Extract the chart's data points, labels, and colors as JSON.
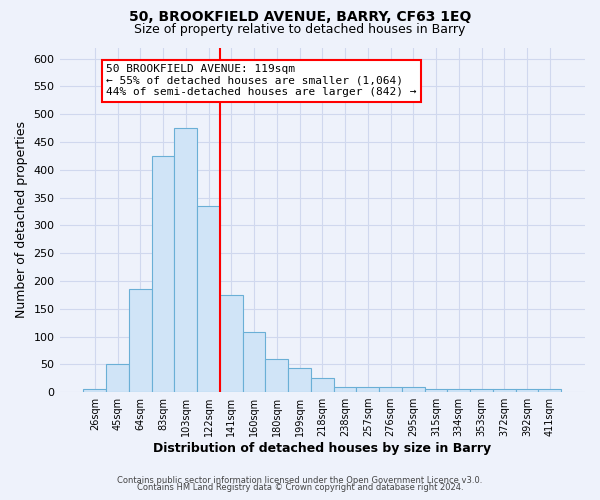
{
  "title1": "50, BROOKFIELD AVENUE, BARRY, CF63 1EQ",
  "title2": "Size of property relative to detached houses in Barry",
  "xlabel": "Distribution of detached houses by size in Barry",
  "ylabel": "Number of detached properties",
  "bin_labels": [
    "26sqm",
    "45sqm",
    "64sqm",
    "83sqm",
    "103sqm",
    "122sqm",
    "141sqm",
    "160sqm",
    "180sqm",
    "199sqm",
    "218sqm",
    "238sqm",
    "257sqm",
    "276sqm",
    "295sqm",
    "315sqm",
    "334sqm",
    "353sqm",
    "372sqm",
    "392sqm",
    "411sqm"
  ],
  "bar_heights": [
    5,
    50,
    185,
    425,
    475,
    335,
    175,
    108,
    60,
    44,
    25,
    10,
    10,
    10,
    10,
    5,
    5,
    5,
    5,
    5,
    5
  ],
  "bar_color": "#d0e4f7",
  "bar_edge_color": "#6aafd6",
  "vline_position": 5.5,
  "vline_color": "red",
  "annotation_title": "50 BROOKFIELD AVENUE: 119sqm",
  "annotation_line1": "← 55% of detached houses are smaller (1,064)",
  "annotation_line2": "44% of semi-detached houses are larger (842) →",
  "annotation_box_color": "white",
  "annotation_box_edge": "red",
  "footer1": "Contains HM Land Registry data © Crown copyright and database right 2024.",
  "footer2": "Contains public sector information licensed under the Open Government Licence v3.0.",
  "ylim": [
    0,
    620
  ],
  "yticks": [
    0,
    50,
    100,
    150,
    200,
    250,
    300,
    350,
    400,
    450,
    500,
    550,
    600
  ],
  "background_color": "#eef2fb",
  "grid_color": "#d0d8ee",
  "title1_fontsize": 10,
  "title2_fontsize": 9,
  "xlabel_fontsize": 9,
  "ylabel_fontsize": 9
}
